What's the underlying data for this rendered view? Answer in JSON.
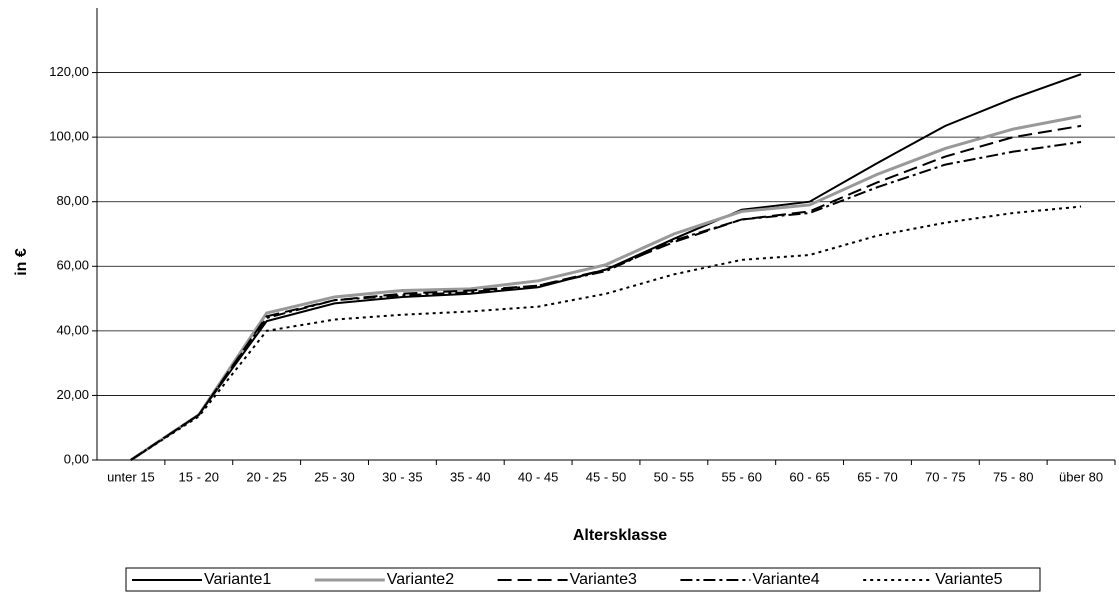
{
  "chart_data": {
    "type": "line",
    "xlabel": "Altersklasse",
    "ylabel": "in €",
    "categories": [
      "unter 15",
      "15 - 20",
      "20 - 25",
      "25 - 30",
      "30 - 35",
      "35 - 40",
      "40 - 45",
      "45 - 50",
      "50 - 55",
      "55 - 60",
      "60 - 65",
      "65 - 70",
      "70 - 75",
      "75 - 80",
      "über 80"
    ],
    "series": [
      {
        "name": "Variante1",
        "color": "#000000",
        "dash": "none",
        "values": [
          0,
          14,
          43,
          48.5,
          50.5,
          51.5,
          53.5,
          59,
          68.5,
          77.5,
          80,
          92,
          103.5,
          112,
          119.5
        ]
      },
      {
        "name": "Variante2",
        "color": "#999999",
        "dash": "none",
        "values": [
          0,
          14,
          45.5,
          50.5,
          52.5,
          53,
          55.5,
          60.5,
          70,
          77,
          79,
          88.5,
          96.5,
          102.5,
          106.5
        ]
      },
      {
        "name": "Variante3",
        "color": "#000000",
        "dash": "14 6",
        "values": [
          0,
          14,
          44.5,
          49.5,
          51.5,
          52.5,
          54,
          59,
          67.5,
          74.5,
          77,
          86,
          94,
          100,
          103.5
        ]
      },
      {
        "name": "Variante4",
        "color": "#000000",
        "dash": "12 4 3 4",
        "values": [
          0,
          14,
          44,
          49.5,
          51,
          52,
          54,
          58.5,
          68,
          74.5,
          76.5,
          84.5,
          91.5,
          95.5,
          98.5
        ]
      },
      {
        "name": "Variante5",
        "color": "#000000",
        "dash": "3 4",
        "values": [
          0,
          13.5,
          40,
          43.5,
          45,
          46,
          47.5,
          51.5,
          57.5,
          62,
          63.5,
          69.5,
          73.5,
          76.5,
          78.5
        ]
      }
    ],
    "ylim": [
      0,
      140
    ],
    "yticks": [
      {
        "value": 0,
        "label": "0,00"
      },
      {
        "value": 20,
        "label": "20,00"
      },
      {
        "value": 40,
        "label": "40,00"
      },
      {
        "value": 60,
        "label": "60,00"
      },
      {
        "value": 80,
        "label": "80,00"
      },
      {
        "value": 100,
        "label": "100,00"
      },
      {
        "value": 120,
        "label": "120,00"
      }
    ],
    "grid": true,
    "legend": "bottom"
  }
}
